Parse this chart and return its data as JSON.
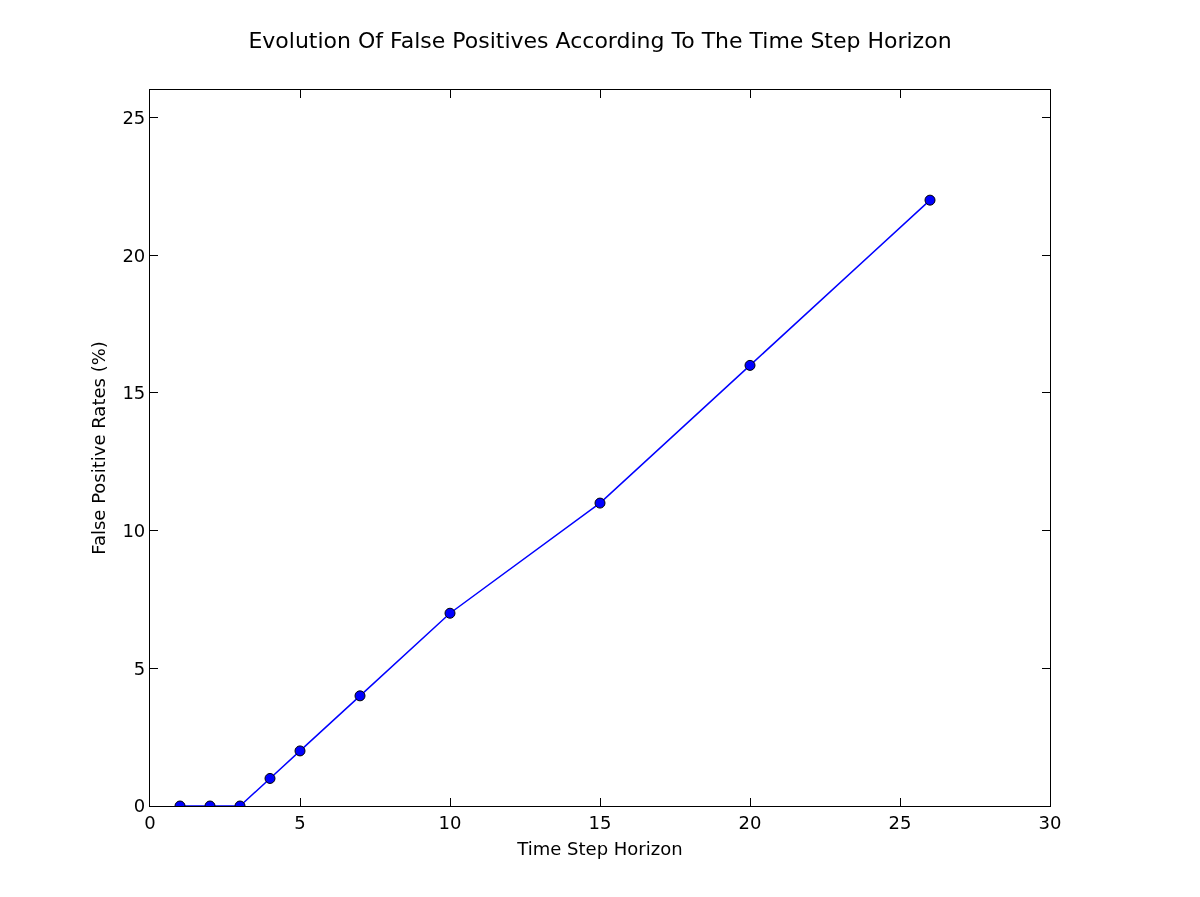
{
  "chart_data": {
    "type": "line",
    "title": "Evolution Of False Positives According To The Time Step Horizon",
    "xlabel": "Time Step Horizon",
    "ylabel": "False Positive Rates (%)",
    "x": [
      1,
      2,
      3,
      4,
      5,
      7,
      10,
      15,
      20,
      26
    ],
    "series": [
      {
        "color": "#0000ff",
        "values": [
          0,
          0,
          0,
          1,
          2,
          4,
          7,
          11,
          16,
          22
        ]
      }
    ],
    "xlim": [
      0,
      30
    ],
    "xticks": [
      0,
      5,
      10,
      15,
      20,
      25,
      30
    ],
    "ylim": [
      0,
      26
    ],
    "yticks": [
      0,
      5,
      10,
      15,
      20,
      25
    ],
    "marker": "circle",
    "line_style": "solid"
  }
}
